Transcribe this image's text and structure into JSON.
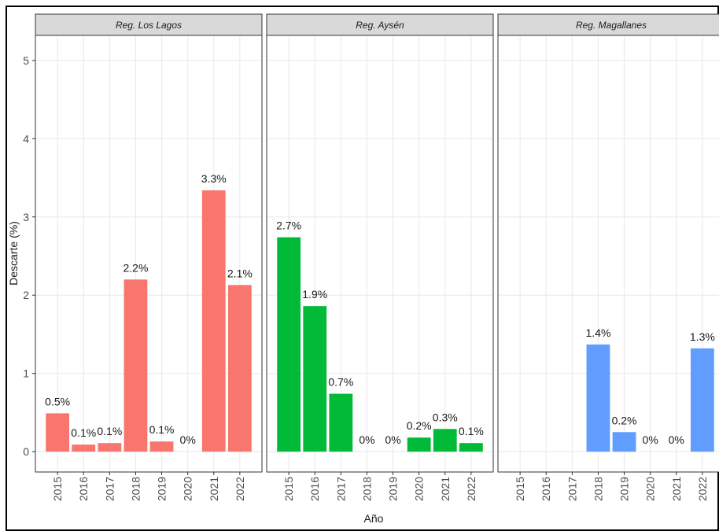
{
  "chart_data": [
    {
      "type": "bar",
      "title": "Reg. Los Lagos",
      "x_label": "Año",
      "y_label": "Descarte (%)",
      "categories": [
        "2015",
        "2016",
        "2017",
        "2018",
        "2019",
        "2020",
        "2021",
        "2022"
      ],
      "values": [
        0.49,
        0.09,
        0.11,
        2.2,
        0.13,
        0,
        3.34,
        2.13
      ],
      "value_labels": [
        "0.5%",
        "0.1%",
        "0.1%",
        "2.2%",
        "0.1%",
        "0%",
        "3.3%",
        "2.1%"
      ],
      "color": "#f8766d",
      "ylim": [
        -0.26,
        5.32
      ],
      "yticks": [
        0,
        1,
        2,
        3,
        4,
        5
      ],
      "grid": true
    },
    {
      "type": "bar",
      "title": "Reg. Aysén",
      "categories": [
        "2015",
        "2016",
        "2017",
        "2018",
        "2019",
        "2020",
        "2021",
        "2022"
      ],
      "values": [
        2.74,
        1.86,
        0.74,
        0,
        0,
        0.18,
        0.29,
        0.11
      ],
      "value_labels": [
        "2.7%",
        "1.9%",
        "0.7%",
        "0%",
        "0%",
        "0.2%",
        "0.3%",
        "0.1%"
      ],
      "color": "#00ba38",
      "ylim": [
        -0.26,
        5.32
      ],
      "grid": true
    },
    {
      "type": "bar",
      "title": "Reg. Magallanes",
      "categories": [
        "2015",
        "2016",
        "2017",
        "2018",
        "2019",
        "2020",
        "2021",
        "2022"
      ],
      "values": [
        null,
        null,
        null,
        1.37,
        0.25,
        0,
        0,
        1.32
      ],
      "value_labels": [
        null,
        null,
        null,
        "1.4%",
        "0.2%",
        "0%",
        "0%",
        "1.3%"
      ],
      "color": "#619cff",
      "ylim": [
        -0.26,
        5.32
      ],
      "grid": true
    }
  ]
}
